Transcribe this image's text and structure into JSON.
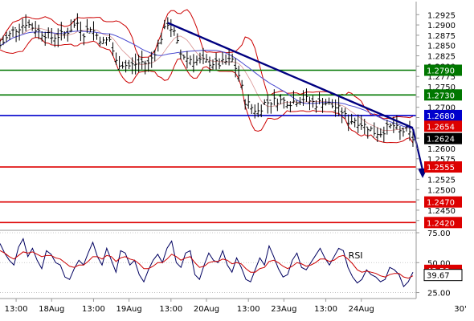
{
  "chart_data": [
    {
      "type": "line",
      "panel": "price",
      "title": "",
      "xlabel": "",
      "ylabel": "",
      "ylim": [
        1.2405,
        1.2945
      ],
      "grid": false,
      "legend": "none",
      "y_ticks": [
        "1.2925",
        "1.2900",
        "1.2875",
        "1.2850",
        "1.2825",
        "1.2800",
        "1.2775",
        "1.2750",
        "1.2725",
        "1.2700",
        "1.2675",
        "1.2650",
        "1.2625",
        "1.2600",
        "1.2575",
        "1.2550",
        "1.2525",
        "1.2500",
        "1.2475",
        "1.2450",
        "1.2425"
      ],
      "x_ticks": [
        "13:00",
        "18Aug",
        "13:00",
        "19Aug",
        "13:00",
        "20Aug",
        "13:00",
        "23Aug",
        "13:00",
        "24Aug"
      ],
      "x_tick_hours": [
        5,
        16,
        29,
        40,
        53,
        64,
        77,
        88,
        101,
        112
      ],
      "x_range": [
        0,
        129
      ],
      "time_unit_label": "30'",
      "price_path": {
        "hours": [
          0,
          4,
          8,
          12,
          16,
          20,
          24,
          26,
          28,
          30,
          32,
          34,
          36,
          40,
          44,
          46,
          48,
          52,
          54,
          56,
          58,
          60,
          64,
          68,
          72,
          74,
          76,
          78,
          80,
          82,
          86,
          90,
          94,
          96,
          98,
          100,
          104,
          106,
          108,
          110,
          112,
          114,
          116,
          118,
          120,
          122,
          124,
          126,
          128
        ],
        "values": [
          1.285,
          1.2885,
          1.2905,
          1.2885,
          1.287,
          1.2878,
          1.2905,
          1.288,
          1.2895,
          1.2875,
          1.2858,
          1.2865,
          1.281,
          1.28,
          1.281,
          1.2805,
          1.2835,
          1.2905,
          1.288,
          1.283,
          1.282,
          1.2815,
          1.281,
          1.2805,
          1.2815,
          1.2778,
          1.2715,
          1.27,
          1.269,
          1.271,
          1.2718,
          1.2712,
          1.2722,
          1.2716,
          1.2708,
          1.2715,
          1.27,
          1.269,
          1.2666,
          1.267,
          1.266,
          1.2652,
          1.264,
          1.2638,
          1.265,
          1.2655,
          1.264,
          1.2645,
          1.2624
        ]
      },
      "trendline": {
        "from": [
          52,
          1.2905
        ],
        "to": [
          128,
          1.265
        ]
      },
      "projection_arrow": {
        "from": [
          128,
          1.2648
        ],
        "to": [
          131,
          1.2528
        ]
      },
      "levels": [
        {
          "value": "1.2790",
          "color": "#007700"
        },
        {
          "value": "1.2730",
          "color": "#007700"
        },
        {
          "value": "1.2680",
          "color": "#0000cc"
        },
        {
          "value": "1.2555",
          "color": "#dd0000"
        },
        {
          "value": "1.2470",
          "color": "#dd0000"
        },
        {
          "value": "1.2420",
          "color": "#dd0000"
        }
      ],
      "price_tags": [
        {
          "value": "1.2654",
          "color": "#dd0000"
        },
        {
          "value": "1.2624",
          "color": "#000000"
        }
      ],
      "colors": {
        "price": "#000000",
        "trendline": "#000080",
        "moving_average": "#4a4ad0",
        "bands": "#cc0000",
        "axis_frame": "#999999"
      }
    },
    {
      "type": "line",
      "panel": "oscillator",
      "title": "",
      "label": "RSI",
      "ylim": [
        20,
        75
      ],
      "y_ticks": [
        "75.00",
        "50.00",
        "25.00"
      ],
      "series": [
        {
          "values": [
            66,
            58,
            52,
            48,
            63,
            70,
            55,
            62,
            52,
            45,
            60,
            57,
            50,
            48,
            38,
            36,
            45,
            52,
            48,
            58,
            67,
            55,
            48,
            62,
            52,
            42,
            60,
            58,
            48,
            52,
            40,
            34,
            44,
            52,
            57,
            50,
            62,
            68,
            50,
            46,
            58,
            60,
            40,
            36,
            48,
            58,
            52,
            50,
            60,
            48,
            42,
            54,
            46,
            36,
            34,
            44,
            54,
            48,
            64,
            55,
            45,
            38,
            40,
            52,
            58,
            46,
            44,
            50,
            56,
            62,
            54,
            48,
            55,
            62,
            60,
            46,
            38,
            33,
            36,
            44,
            40,
            38,
            34,
            36,
            46,
            44,
            40,
            30,
            34,
            42
          ]
        },
        {
          "values": [
            60,
            58,
            55,
            53,
            56,
            59,
            58,
            59,
            57,
            55,
            56,
            56,
            54,
            53,
            50,
            47,
            46,
            48,
            48,
            51,
            55,
            55,
            53,
            56,
            55,
            51,
            54,
            55,
            53,
            52,
            49,
            45,
            45,
            47,
            50,
            50,
            53,
            57,
            55,
            52,
            54,
            55,
            50,
            46,
            47,
            50,
            51,
            51,
            53,
            52,
            49,
            50,
            49,
            45,
            42,
            42,
            45,
            46,
            51,
            52,
            50,
            47,
            45,
            47,
            50,
            49,
            47,
            48,
            50,
            53,
            53,
            51,
            52,
            55,
            56,
            53,
            49,
            44,
            42,
            43,
            42,
            41,
            39,
            38,
            40,
            41,
            41,
            38,
            37,
            39
          ]
        }
      ],
      "value_tags": [
        {
          "value": "43.58",
          "color": "#dd0000"
        },
        {
          "value": "39.67",
          "color": "#000000"
        }
      ],
      "colors": {
        "fast": "#000060",
        "slow": "#cc0000"
      }
    }
  ]
}
